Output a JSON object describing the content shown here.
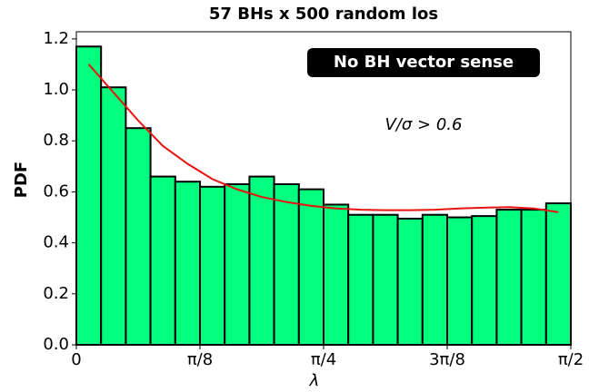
{
  "chart_data": {
    "type": "histogram",
    "title": "57 BHs x 500 random los",
    "xlabel": "λ",
    "ylabel": "PDF",
    "bins": [
      0,
      0.0785,
      0.1571,
      0.2356,
      0.3142,
      0.3927,
      0.4712,
      0.5498,
      0.6283,
      0.7069,
      0.7854,
      0.8639,
      0.9425,
      1.021,
      1.0996,
      1.1781,
      1.2566,
      1.3352,
      1.4137,
      1.4923,
      1.5708
    ],
    "values": [
      1.17,
      1.01,
      0.85,
      0.66,
      0.64,
      0.62,
      0.63,
      0.66,
      0.63,
      0.61,
      0.55,
      0.51,
      0.51,
      0.495,
      0.51,
      0.5,
      0.505,
      0.53,
      0.53,
      0.555
    ],
    "color": "#00ff7f",
    "curve": {
      "color": "#e8130f",
      "x": [
        0.0393,
        0.1178,
        0.1963,
        0.2749,
        0.3534,
        0.432,
        0.5105,
        0.589,
        0.6676,
        0.7461,
        0.8247,
        0.9032,
        0.9817,
        1.0603,
        1.1388,
        1.2174,
        1.2959,
        1.3744,
        1.453,
        1.5315
      ],
      "values": [
        1.1,
        0.99,
        0.88,
        0.78,
        0.71,
        0.65,
        0.61,
        0.58,
        0.56,
        0.545,
        0.535,
        0.53,
        0.528,
        0.528,
        0.53,
        0.535,
        0.538,
        0.54,
        0.535,
        0.52
      ]
    },
    "xlim": [
      0,
      1.5708
    ],
    "ylim": [
      0,
      1.228
    ],
    "xticks": [
      0,
      {
        "value": 0.3927,
        "label": "π/8"
      },
      {
        "value": 0.7854,
        "label": "π/4"
      },
      {
        "value": 1.1781,
        "label": "3π/8"
      },
      {
        "value": 1.5708,
        "label": "π/2"
      }
    ],
    "yticks": [
      {
        "value": 0,
        "label": "0.0"
      },
      0.2,
      0.4,
      0.6,
      0.8,
      {
        "value": 1,
        "label": "1.0"
      },
      1.2
    ],
    "annotations": [
      "No BH vector sense",
      "V/σ > 0.6"
    ]
  }
}
